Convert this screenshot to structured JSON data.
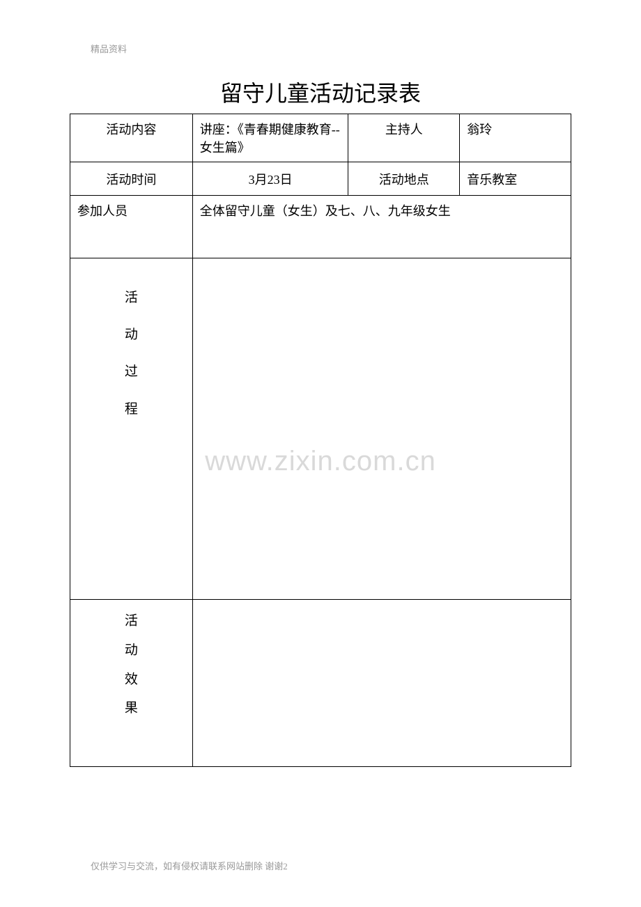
{
  "header_label": "精品资料",
  "title": "留守儿童活动记录表",
  "table": {
    "row1": {
      "label": "活动内容",
      "content": "讲座：《青春期健康教育--女生篇》",
      "host_label": "主持人",
      "host_name": "翁玲"
    },
    "row2": {
      "label": "活动时间",
      "date": "3月23日",
      "location_label": "活动地点",
      "location": "音乐教室"
    },
    "row3": {
      "label": "参加人员",
      "content": "全体留守儿童（女生）及七、八、九年级女生"
    },
    "row4": {
      "label_chars": [
        "活",
        "动",
        "过",
        "程"
      ]
    },
    "row5": {
      "label_chars": [
        "活",
        "动",
        "效",
        "果"
      ]
    }
  },
  "watermark": "www.zixin.com.cn",
  "footer": "仅供学习与交流，如有侵权请联系网站删除 谢谢2"
}
